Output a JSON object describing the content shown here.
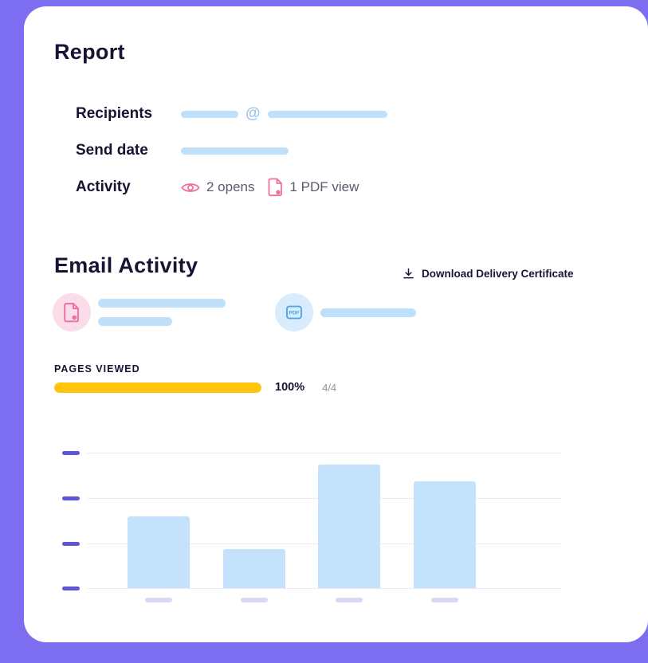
{
  "theme": {
    "background": "#7D6EF1",
    "card": "#FFFFFF",
    "heading_text": "#181233",
    "body_text": "#5A5A6B",
    "redaction_blue": "#BFE0FA",
    "pink": "#F06FA0",
    "pink_circle_bg": "#FBDCE9",
    "blue": "#4BA3EA",
    "blue_circle_bg": "#D9ECFD",
    "progress_yellow": "#FFC40E",
    "axis_tick_purple": "#6055D9",
    "gridline": "#ECE8F9",
    "chart_bar_blue": "#C4E2FB",
    "xlabel_dash": "#DDD6F6"
  },
  "icons": {
    "opens": "eye-icon",
    "pdf_view": "pdf-eye-icon",
    "attachment_document": "pdf-document-icon",
    "attachment_badge": "pdf-badge-icon",
    "download": "download-icon"
  },
  "report": {
    "title": "Report",
    "recipients_label": "Recipients",
    "recipients_at": "@",
    "send_date_label": "Send date",
    "activity_label": "Activity",
    "opens_text": "2 opens",
    "pdf_view_text": "1 PDF view"
  },
  "email_activity": {
    "title": "Email Activity",
    "download_certificate_label": "Download Delivery Certificate"
  },
  "pages_viewed": {
    "label": "PAGES VIEWED",
    "percent_label": "100%",
    "percent_value": 100,
    "fraction_label": "4/4"
  },
  "chart_data": {
    "type": "bar",
    "categories": [
      "",
      "",
      "",
      ""
    ],
    "values": [
      53,
      29,
      91,
      79
    ],
    "title": "",
    "xlabel": "",
    "ylabel": "",
    "ylim": [
      0,
      100
    ],
    "grid": true,
    "gridline_count": 4,
    "x_labels_redacted": true,
    "legend": false
  }
}
